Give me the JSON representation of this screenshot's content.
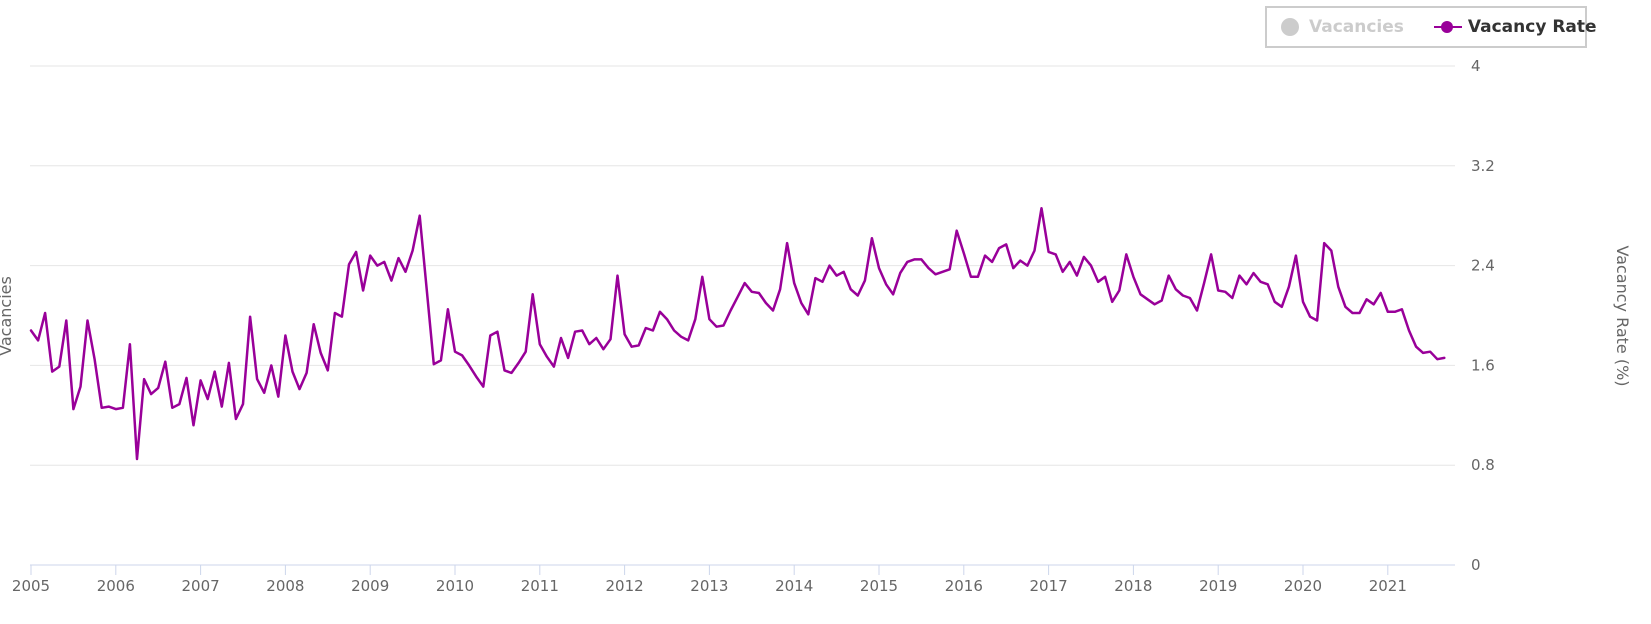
{
  "legend": {
    "vacancies_label": "Vacancies",
    "vacancy_rate_label": "Vacancy Rate"
  },
  "axes": {
    "left_title": "Vacancies",
    "right_title": "Vacancy Rate (%)"
  },
  "colors": {
    "vacancy_rate": "#990099",
    "hidden_series": "#cccccc",
    "grid": "#e6e6e6",
    "axis_text": "#666666"
  },
  "chart_data": {
    "type": "line",
    "xlabel": "",
    "ylabel": "Vacancy Rate (%)",
    "x_ticks": [
      "2005",
      "2006",
      "2007",
      "2008",
      "2009",
      "2010",
      "2011",
      "2012",
      "2013",
      "2014",
      "2015",
      "2016",
      "2017",
      "2018",
      "2019",
      "2020",
      "2021"
    ],
    "xlim": [
      "2005-01",
      "2021-12"
    ],
    "y_ticks": [
      "0",
      "0.8",
      "1.6",
      "2.4",
      "3.2",
      "4"
    ],
    "ylim": [
      0,
      4
    ],
    "grid": true,
    "legend_position": "top-right",
    "series": [
      {
        "name": "Vacancies",
        "visible": false,
        "values": []
      },
      {
        "name": "Vacancy Rate",
        "visible": true,
        "start": "2005-01",
        "frequency": "monthly",
        "values": [
          1.88,
          1.8,
          2.02,
          1.55,
          1.59,
          1.96,
          1.25,
          1.43,
          1.96,
          1.65,
          1.26,
          1.27,
          1.25,
          1.26,
          1.77,
          0.85,
          1.49,
          1.37,
          1.42,
          1.63,
          1.26,
          1.29,
          1.5,
          1.12,
          1.48,
          1.33,
          1.55,
          1.27,
          1.62,
          1.17,
          1.29,
          1.99,
          1.49,
          1.38,
          1.6,
          1.35,
          1.84,
          1.55,
          1.41,
          1.54,
          1.93,
          1.7,
          1.56,
          2.02,
          1.99,
          2.41,
          2.51,
          2.2,
          2.48,
          2.4,
          2.43,
          2.28,
          2.46,
          2.35,
          2.52,
          2.8,
          2.21,
          1.61,
          1.64,
          2.05,
          1.71,
          1.68,
          1.6,
          1.51,
          1.43,
          1.84,
          1.87,
          1.56,
          1.54,
          1.62,
          1.71,
          2.17,
          1.77,
          1.67,
          1.59,
          1.82,
          1.66,
          1.87,
          1.88,
          1.77,
          1.82,
          1.73,
          1.81,
          2.32,
          1.85,
          1.75,
          1.76,
          1.9,
          1.88,
          2.03,
          1.97,
          1.88,
          1.83,
          1.8,
          1.97,
          2.31,
          1.97,
          1.91,
          1.92,
          2.04,
          2.15,
          2.26,
          2.19,
          2.18,
          2.1,
          2.04,
          2.21,
          2.58,
          2.26,
          2.1,
          2.01,
          2.3,
          2.27,
          2.4,
          2.32,
          2.35,
          2.21,
          2.16,
          2.28,
          2.62,
          2.38,
          2.25,
          2.17,
          2.34,
          2.43,
          2.45,
          2.45,
          2.38,
          2.33,
          2.35,
          2.37,
          2.68,
          2.5,
          2.31,
          2.31,
          2.48,
          2.43,
          2.54,
          2.57,
          2.38,
          2.44,
          2.4,
          2.52,
          2.86,
          2.51,
          2.49,
          2.35,
          2.43,
          2.32,
          2.47,
          2.4,
          2.27,
          2.31,
          2.11,
          2.2,
          2.49,
          2.31,
          2.17,
          2.13,
          2.09,
          2.12,
          2.32,
          2.21,
          2.16,
          2.14,
          2.04,
          2.26,
          2.49,
          2.2,
          2.19,
          2.14,
          2.32,
          2.25,
          2.34,
          2.27,
          2.25,
          2.11,
          2.07,
          2.23,
          2.48,
          2.11,
          1.99,
          1.96,
          2.58,
          2.52,
          2.23,
          2.07,
          2.02,
          2.02,
          2.13,
          2.09,
          2.18,
          2.03,
          2.03,
          2.05,
          1.88,
          1.75,
          1.7,
          1.71,
          1.65,
          1.66
        ]
      }
    ]
  }
}
